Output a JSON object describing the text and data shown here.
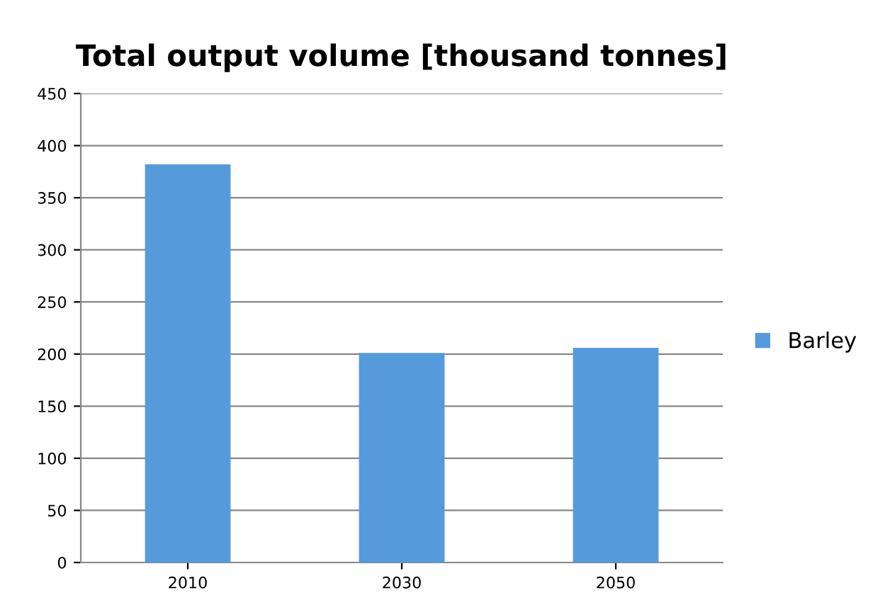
{
  "chart_data": {
    "type": "bar",
    "title": "Total output volume [thousand tonnes]",
    "categories": [
      "2010",
      "2030",
      "2050"
    ],
    "series": [
      {
        "name": "Barley",
        "color": "#559bdb",
        "values": [
          382,
          201,
          206
        ]
      }
    ],
    "ylim": [
      0,
      450
    ],
    "yticks": [
      0,
      50,
      100,
      150,
      200,
      250,
      300,
      350,
      400,
      450
    ],
    "grid": "y",
    "legend": "right"
  }
}
